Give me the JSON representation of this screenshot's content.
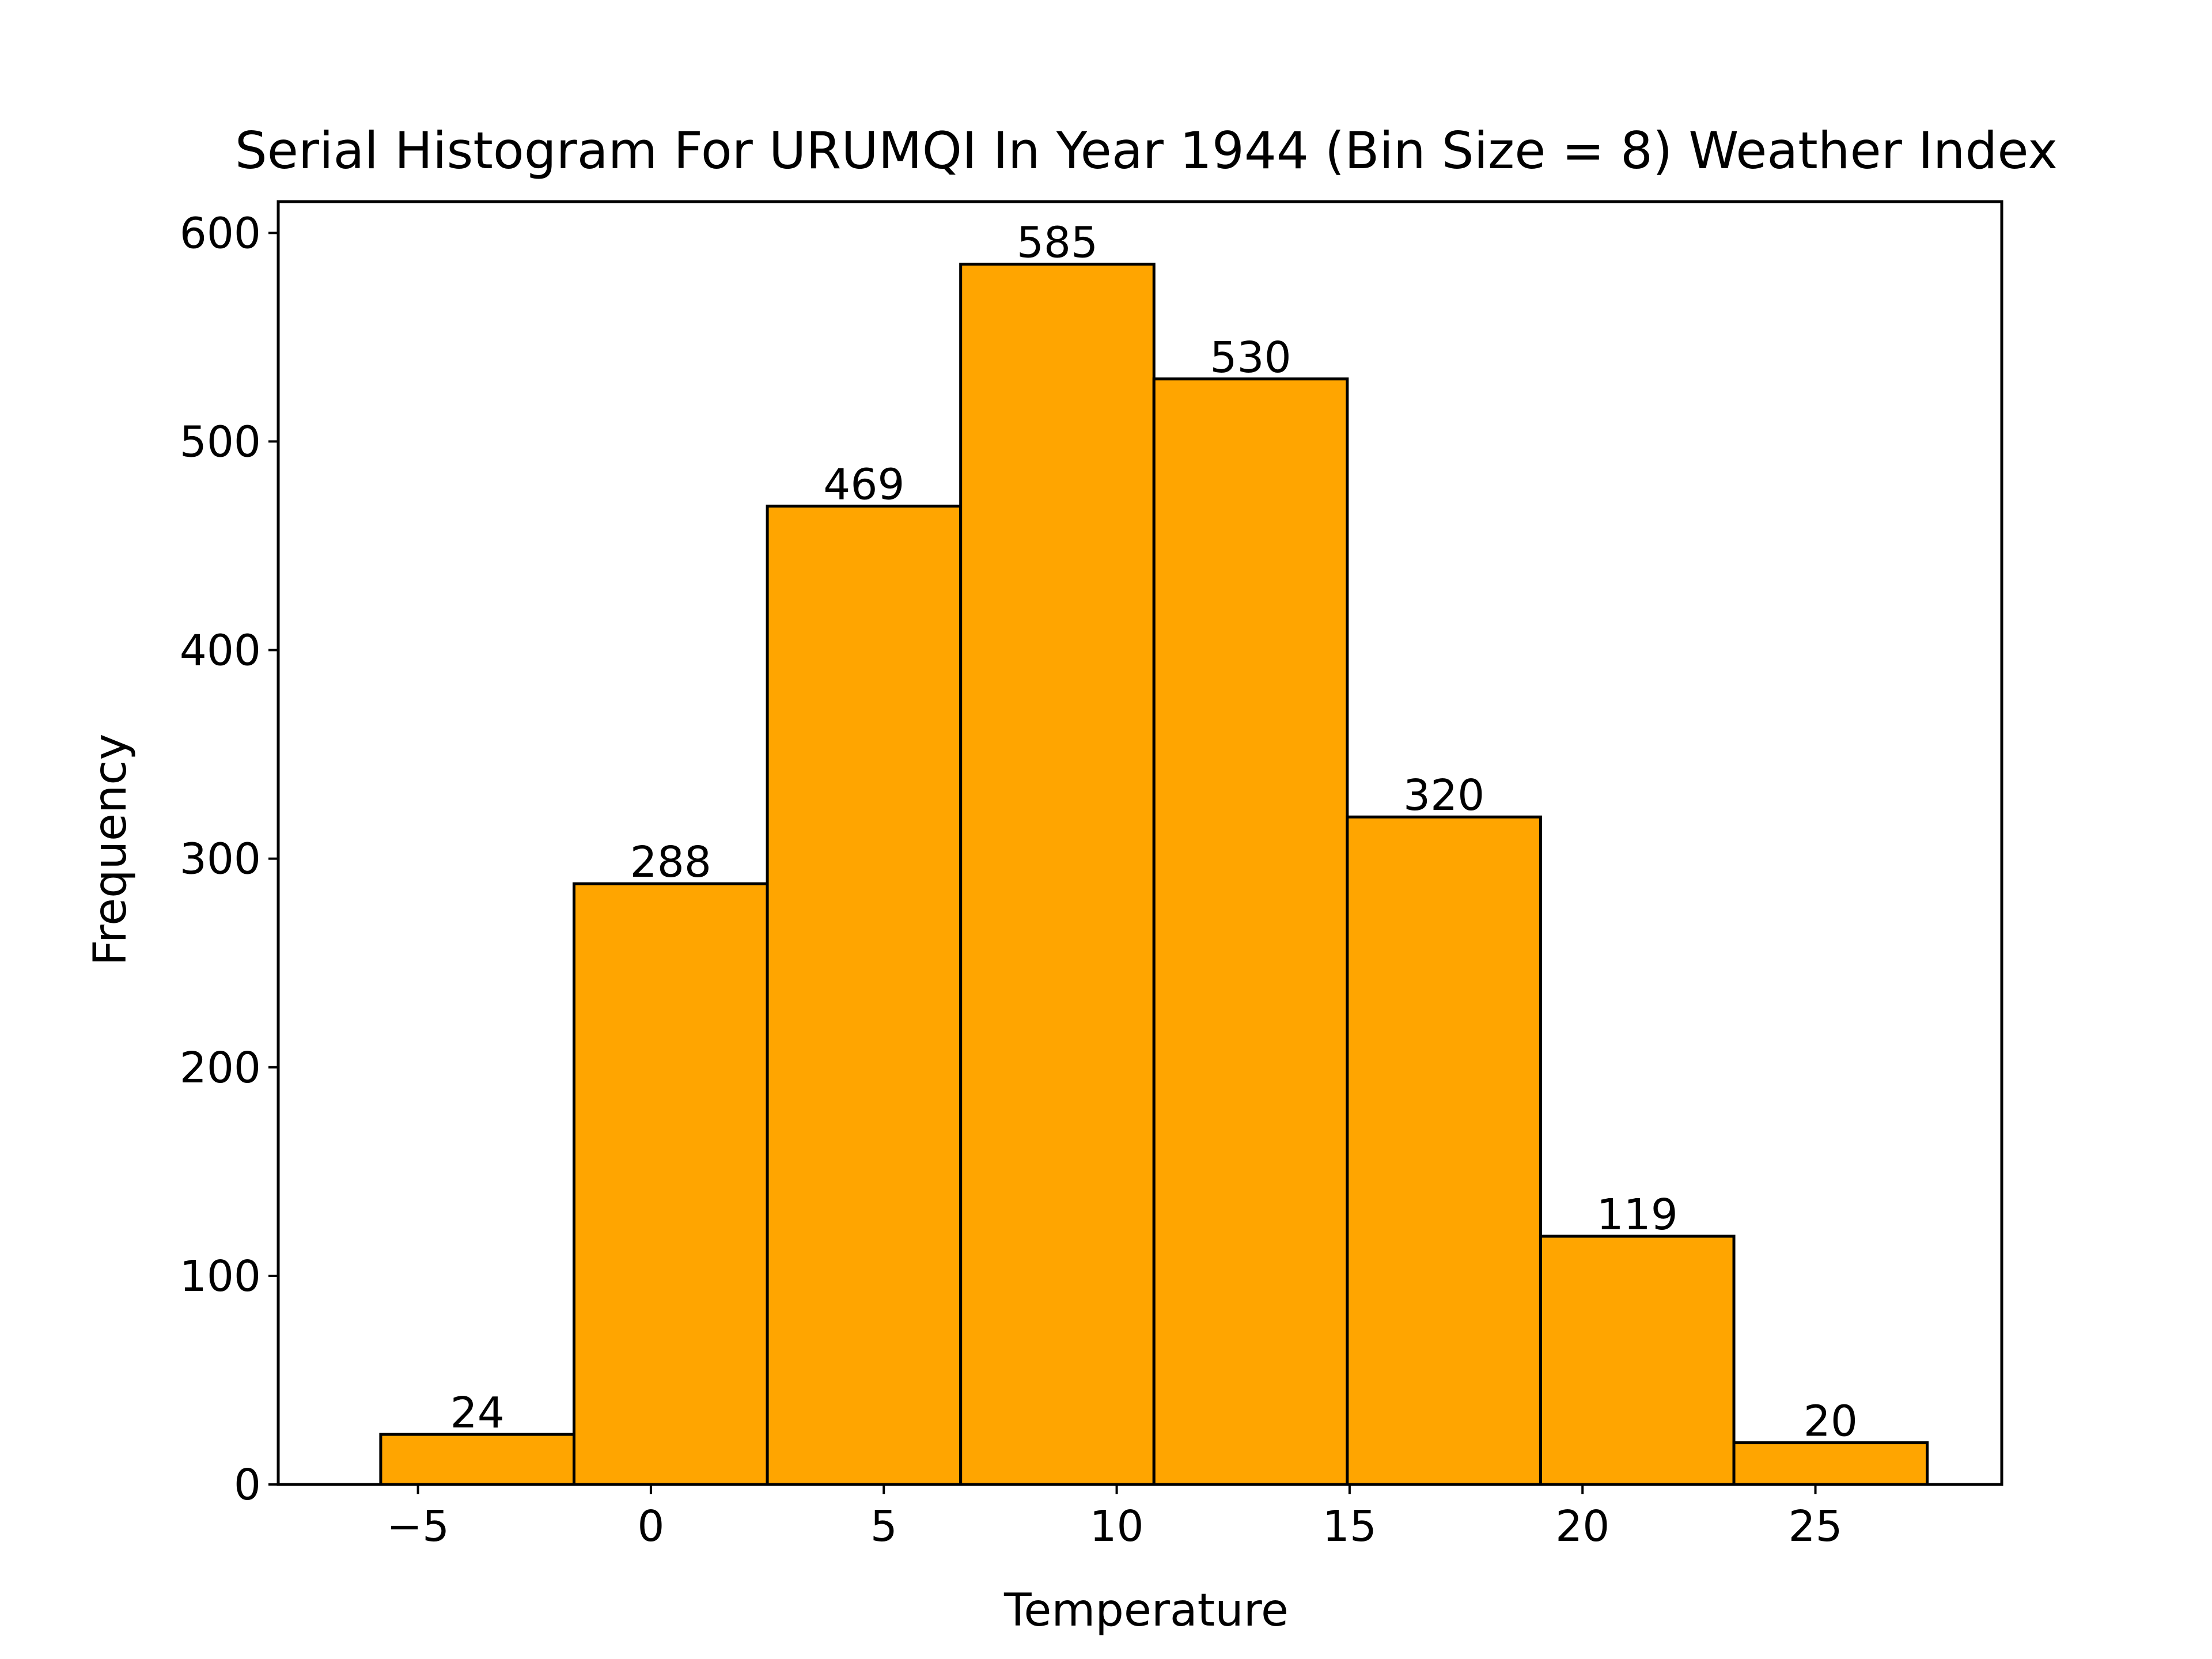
{
  "chart_data": {
    "type": "bar",
    "title": "Serial Histogram For URUMQI In Year 1944 (Bin Size = 8) Weather Index",
    "xlabel": "Temperature",
    "ylabel": "Frequency",
    "bin_edges": [
      -5.8,
      -1.65,
      2.5,
      6.65,
      10.8,
      14.95,
      19.1,
      23.25,
      27.4
    ],
    "values": [
      24,
      288,
      469,
      585,
      530,
      320,
      119,
      20
    ],
    "value_labels": [
      "24",
      "288",
      "469",
      "585",
      "530",
      "320",
      "119",
      "20"
    ],
    "xlim": [
      -8,
      29
    ],
    "ylim": [
      0,
      615
    ],
    "x_ticks": [
      -5,
      0,
      5,
      10,
      15,
      20,
      25
    ],
    "x_tick_labels": [
      "−5",
      "0",
      "5",
      "10",
      "15",
      "20",
      "25"
    ],
    "y_ticks": [
      0,
      100,
      200,
      300,
      400,
      500,
      600
    ],
    "y_tick_labels": [
      "0",
      "100",
      "200",
      "300",
      "400",
      "500",
      "600"
    ],
    "bar_color": "#FFA500",
    "edge_color": "#000000",
    "grid": false,
    "legend": "none"
  }
}
